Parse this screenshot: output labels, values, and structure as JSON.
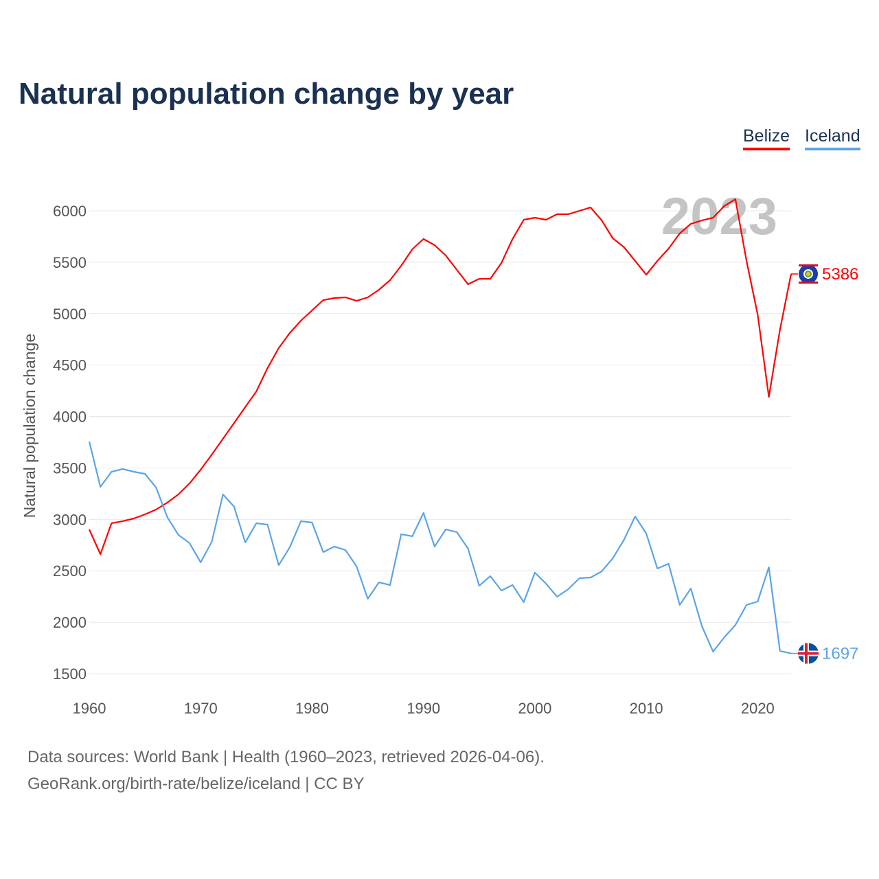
{
  "title": "Natural population change by year",
  "source_line1": "Data sources: World Bank | Health (1960–2023, retrieved 2026-04-06).",
  "source_line2": "GeoRank.org/birth-rate/belize/iceland | CC BY",
  "colors": {
    "belize": "#ff0000",
    "iceland": "#5ba4e8",
    "title": "#1b3152"
  },
  "chart_data": {
    "type": "line",
    "title": "Natural population change by year",
    "xlabel": "",
    "ylabel": "Natural population change",
    "watermark_year": "2023",
    "xlim": [
      1960,
      2023
    ],
    "ylim": [
      1500,
      6000
    ],
    "xticks": [
      "1960",
      "1970",
      "1980",
      "1990",
      "2000",
      "2010",
      "2020"
    ],
    "yticks": [
      "1500",
      "2000",
      "2500",
      "3000",
      "3500",
      "4000",
      "4500",
      "5000",
      "5500",
      "6000"
    ],
    "grid": true,
    "legend_position": "top-right",
    "x_start": 1960,
    "series": [
      {
        "name": "Belize",
        "end_label": "5386",
        "flag_icon": "belize-flag-icon",
        "values": [
          2902,
          2662,
          2963,
          2983,
          3009,
          3049,
          3096,
          3163,
          3243,
          3350,
          3483,
          3630,
          3784,
          3937,
          4091,
          4244,
          4471,
          4665,
          4812,
          4932,
          5032,
          5132,
          5152,
          5159,
          5125,
          5159,
          5232,
          5326,
          5466,
          5626,
          5726,
          5666,
          5566,
          5426,
          5286,
          5339,
          5339,
          5493,
          5726,
          5913,
          5933,
          5913,
          5967,
          5967,
          6000,
          6033,
          5907,
          5733,
          5646,
          5513,
          5379,
          5513,
          5633,
          5780,
          5873,
          5907,
          5933,
          6047,
          6113,
          5513,
          4992,
          4191,
          4845,
          5386
        ]
      },
      {
        "name": "Iceland",
        "end_label": "1697",
        "flag_icon": "iceland-flag-icon",
        "values": [
          3757,
          3316,
          3463,
          3490,
          3463,
          3443,
          3310,
          3022,
          2849,
          2769,
          2582,
          2782,
          3243,
          3123,
          2776,
          2963,
          2949,
          2555,
          2729,
          2983,
          2969,
          2682,
          2736,
          2702,
          2542,
          2228,
          2388,
          2362,
          2856,
          2836,
          3063,
          2736,
          2903,
          2876,
          2716,
          2355,
          2448,
          2308,
          2362,
          2195,
          2482,
          2375,
          2248,
          2322,
          2428,
          2435,
          2495,
          2622,
          2802,
          3029,
          2863,
          2522,
          2569,
          2168,
          2328,
          1961,
          1714,
          1854,
          1974,
          2168,
          2201,
          2535,
          1721,
          1697
        ]
      }
    ]
  }
}
